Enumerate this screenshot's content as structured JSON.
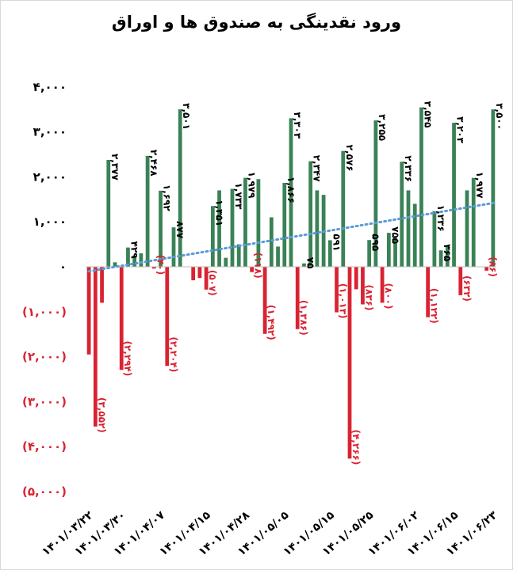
{
  "chart_data": {
    "type": "bar",
    "title": "ورود نقدینگی به صندوق ها و اوراق",
    "xlabel": "",
    "ylabel": "",
    "ylim": [
      -5000,
      4000
    ],
    "yticks": [
      {
        "value": 4000,
        "label": "۴,۰۰۰"
      },
      {
        "value": 3000,
        "label": "۳,۰۰۰"
      },
      {
        "value": 2000,
        "label": "۲,۰۰۰"
      },
      {
        "value": 1000,
        "label": "۱,۰۰۰"
      },
      {
        "value": 0,
        "label": "۰"
      },
      {
        "value": -1000,
        "label": "(۱,۰۰۰)"
      },
      {
        "value": -2000,
        "label": "(۲,۰۰۰)"
      },
      {
        "value": -3000,
        "label": "(۳,۰۰۰)"
      },
      {
        "value": -4000,
        "label": "(۴,۰۰۰)"
      },
      {
        "value": -5000,
        "label": "(۵,۰۰۰)"
      }
    ],
    "x_tick_labels": [
      {
        "index": 0,
        "label": "۱۴۰۱/۰۳/۲۲"
      },
      {
        "index": 5,
        "label": "۱۴۰۱/۰۳/۳۰"
      },
      {
        "index": 11,
        "label": "۱۴۰۱/۰۴/۰۷"
      },
      {
        "index": 18,
        "label": "۱۴۰۱/۰۴/۱۵"
      },
      {
        "index": 24,
        "label": "۱۴۰۱/۰۴/۲۸"
      },
      {
        "index": 30,
        "label": "۱۴۰۱/۰۵/۰۵"
      },
      {
        "index": 37,
        "label": "۱۴۰۱/۰۵/۱۵"
      },
      {
        "index": 43,
        "label": "۱۴۰۱/۰۵/۲۵"
      },
      {
        "index": 50,
        "label": "۱۴۰۱/۰۶/۰۲"
      },
      {
        "index": 56,
        "label": "۱۴۰۱/۰۶/۱۵"
      },
      {
        "index": 62,
        "label": "۱۴۰۱/۰۶/۲۳"
      }
    ],
    "positive_color": "#3a8256",
    "negative_color": "#d92332",
    "trendline_color": "#5b9bd5",
    "trendline": {
      "type": "linear",
      "style": "dotted",
      "start": -100,
      "end": 1430
    },
    "grid": false,
    "legend": "none",
    "bars": [
      {
        "v": -1950
      },
      {
        "v": -3552,
        "label": "(۳,۵۵۲)"
      },
      {
        "v": -800
      },
      {
        "v": 2377,
        "label": "۲,۳۷۷"
      },
      {
        "v": 100
      },
      {
        "v": -2294,
        "label": "(۲,۲۹۴)"
      },
      {
        "v": 429,
        "label": "۴۲۹"
      },
      {
        "v": 250
      },
      {
        "v": 300
      },
      {
        "v": 2468,
        "label": "۲,۴۶۸"
      },
      {
        "v": -40,
        "label": "(۴۰)"
      },
      {
        "v": 1692,
        "label": "۱,۶۹۲"
      },
      {
        "v": -2204,
        "label": "(۲,۲۰۴)"
      },
      {
        "v": 877,
        "label": "۸۷۷"
      },
      {
        "v": 3501,
        "label": "۳,۵۰۱"
      },
      {
        "v": 0
      },
      {
        "v": -300
      },
      {
        "v": -250
      },
      {
        "v": -507,
        "label": "(۵۰۷)"
      },
      {
        "v": 1351,
        "label": "۱,۳۵۱"
      },
      {
        "v": 1700
      },
      {
        "v": 200
      },
      {
        "v": 1733,
        "label": "۱,۷۳۳"
      },
      {
        "v": 500
      },
      {
        "v": 1979,
        "label": "۱,۹۷۹"
      },
      {
        "v": -118,
        "label": "(۱۱۸)"
      },
      {
        "v": 1950
      },
      {
        "v": -1492,
        "label": "(۱,۴۹۲)"
      },
      {
        "v": 1100
      },
      {
        "v": 450
      },
      {
        "v": 1866,
        "label": "۱,۸۶۶"
      },
      {
        "v": 3303,
        "label": "۳,۳۰۳"
      },
      {
        "v": -1386,
        "label": "(۱,۳۸۶)"
      },
      {
        "v": 75,
        "label": "۷۵"
      },
      {
        "v": 2347,
        "label": "۲,۳۴۷"
      },
      {
        "v": 1700
      },
      {
        "v": 1600
      },
      {
        "v": 591,
        "label": "۵۹۱"
      },
      {
        "v": -1013,
        "label": "(۱,۰۱۳)"
      },
      {
        "v": 2576,
        "label": "۲,۵۷۶"
      },
      {
        "v": -4266,
        "label": "(۴,۲۶۶)"
      },
      {
        "v": -500
      },
      {
        "v": -836,
        "label": "(۸۳۶)"
      },
      {
        "v": 595,
        "label": "۵۹۵"
      },
      {
        "v": 3255,
        "label": "۳,۲۵۵"
      },
      {
        "v": -800,
        "label": "(۸۰۰)"
      },
      {
        "v": 755,
        "label": "۷۵۵"
      },
      {
        "v": 650
      },
      {
        "v": 2336,
        "label": "۲,۳۳۶"
      },
      {
        "v": 1700
      },
      {
        "v": 1400
      },
      {
        "v": 3545,
        "label": "۳,۵۴۵"
      },
      {
        "v": -1122,
        "label": "(۱,۱۲۲)"
      },
      {
        "v": 1236,
        "label": "۱,۲۳۶"
      },
      {
        "v": 365,
        "label": "۳۶۵"
      },
      {
        "v": 450
      },
      {
        "v": 3203,
        "label": "۳,۲۰۳"
      },
      {
        "v": -632,
        "label": "(۶۳۲)"
      },
      {
        "v": 1700
      },
      {
        "v": 1977,
        "label": "۱,۹۷۷"
      },
      {
        "v": 0
      },
      {
        "v": -86,
        "label": "(۸۶)"
      },
      {
        "v": 3500,
        "label": "۳,۵۰۰"
      }
    ]
  }
}
